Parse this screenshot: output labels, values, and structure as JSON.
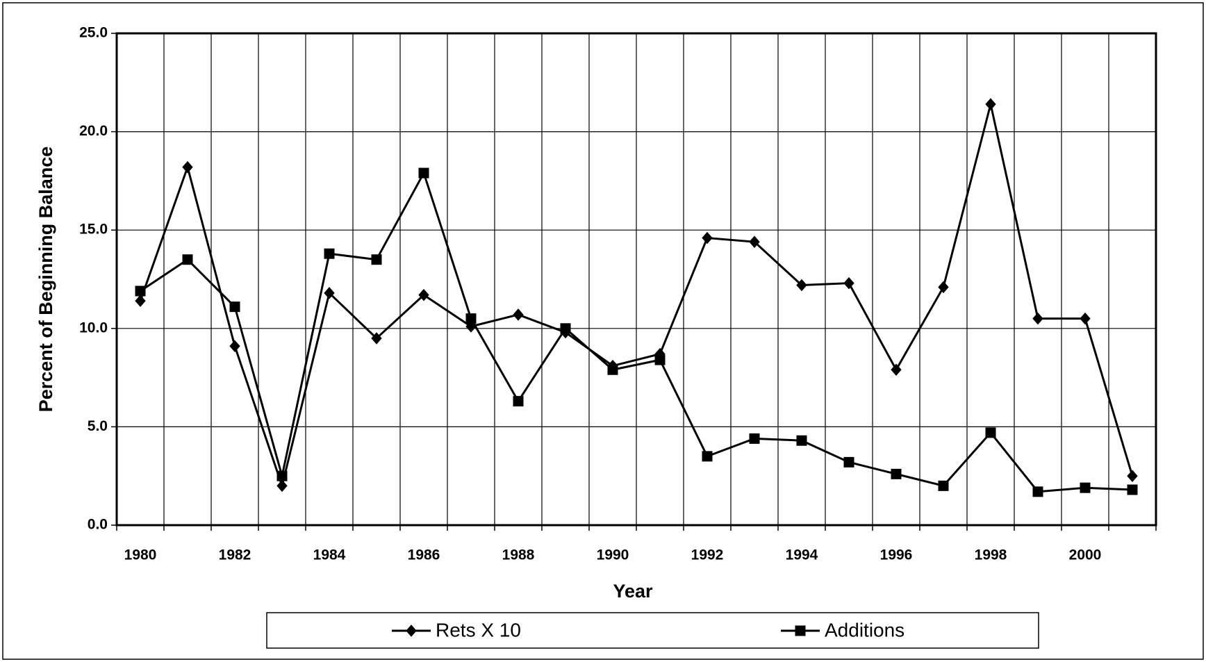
{
  "chart_data": {
    "type": "line",
    "x_label": "Year",
    "y_label": "Percent of Beginning Balance",
    "categories": [
      "1980",
      null,
      "1982",
      null,
      "1984",
      null,
      "1986",
      null,
      "1988",
      null,
      "1990",
      null,
      "1992",
      null,
      "1994",
      null,
      "1996",
      null,
      "1998",
      null,
      "2000",
      null
    ],
    "series": [
      {
        "name": "Rets X 10",
        "color": "#000000",
        "marker": "diamond",
        "values": [
          11.4,
          18.2,
          9.1,
          2.0,
          11.8,
          9.5,
          11.7,
          10.1,
          10.7,
          9.8,
          8.1,
          8.7,
          14.6,
          14.4,
          12.2,
          12.3,
          7.9,
          12.1,
          21.4,
          10.5,
          10.5,
          2.5
        ]
      },
      {
        "name": "Additions",
        "color": "#000000",
        "marker": "square",
        "values": [
          11.9,
          13.5,
          11.1,
          2.5,
          13.8,
          13.5,
          17.9,
          10.5,
          6.3,
          10.0,
          7.9,
          8.4,
          3.5,
          4.4,
          4.3,
          3.2,
          2.6,
          2.0,
          4.7,
          1.7,
          1.9,
          1.8
        ]
      }
    ],
    "ylim": [
      0,
      25
    ],
    "yticks": [
      {
        "value": 0,
        "label": "0.0"
      },
      {
        "value": 5,
        "label": "5.0"
      },
      {
        "value": 10,
        "label": "10.0"
      },
      {
        "value": 15,
        "label": "15.0"
      },
      {
        "value": 20,
        "label": "20.0"
      },
      {
        "value": 25,
        "label": "25.0"
      }
    ],
    "grid": true,
    "legend": "bottom"
  }
}
